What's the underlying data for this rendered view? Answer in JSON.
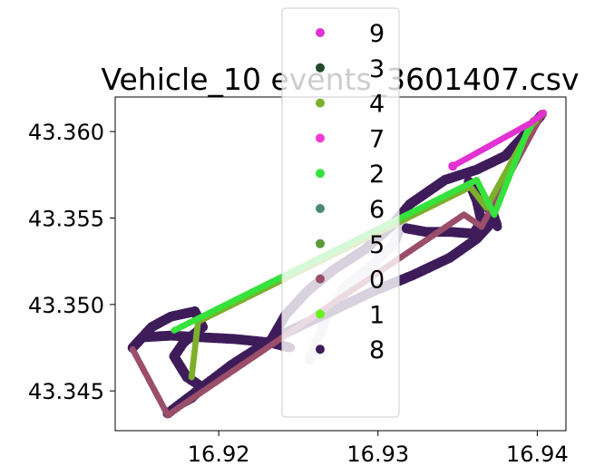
{
  "chart_data": {
    "type": "scatter",
    "title": "Vehicle_10 events_3601407.csv",
    "xlabel": "",
    "ylabel": "",
    "xlim": [
      16.9135,
      16.9418
    ],
    "ylim": [
      43.3427,
      43.362
    ],
    "x_ticks": [
      {
        "value": 16.92,
        "label": "16.92"
      },
      {
        "value": 16.93,
        "label": "16.93"
      },
      {
        "value": 16.94,
        "label": "16.94"
      }
    ],
    "y_ticks": [
      {
        "value": 43.345,
        "label": "43.345"
      },
      {
        "value": 43.35,
        "label": "43.350"
      },
      {
        "value": 43.355,
        "label": "43.355"
      },
      {
        "value": 43.36,
        "label": "43.360"
      }
    ],
    "grid": false,
    "legend_position": "top-center",
    "legend": [
      {
        "label": "9",
        "color": "#e232d2"
      },
      {
        "label": "3",
        "color": "#234a2c"
      },
      {
        "label": "4",
        "color": "#7cb02c"
      },
      {
        "label": "7",
        "color": "#f23ad6"
      },
      {
        "label": "2",
        "color": "#36e23c"
      },
      {
        "label": "6",
        "color": "#4a8a6e"
      },
      {
        "label": "5",
        "color": "#5e9a3a"
      },
      {
        "label": "0",
        "color": "#9a4e6a"
      },
      {
        "label": "1",
        "color": "#6af21e"
      },
      {
        "label": "8",
        "color": "#3e1c5a"
      }
    ],
    "series": [
      {
        "label": "6",
        "color": "#d8cfe0",
        "points": [
          [
            16.9257,
            43.3468
          ],
          [
            16.9268,
            43.3493
          ],
          [
            16.928,
            43.3511
          ],
          [
            16.9298,
            43.3524
          ],
          [
            16.931,
            43.3535
          ],
          [
            16.9315,
            43.3547
          ],
          [
            16.9318,
            43.3556
          ]
        ]
      },
      {
        "label": "8",
        "color": "#3e1c5a",
        "points": [
          [
            16.9168,
            43.3437
          ],
          [
            16.9188,
            43.3451
          ],
          [
            16.9208,
            43.3465
          ],
          [
            16.923,
            43.3478
          ],
          [
            16.9252,
            43.3488
          ],
          [
            16.9275,
            43.3498
          ],
          [
            16.9298,
            43.3508
          ],
          [
            16.9322,
            43.3517
          ],
          [
            16.9345,
            43.3527
          ],
          [
            16.9362,
            43.3538
          ],
          [
            16.9372,
            43.3548
          ]
        ]
      },
      {
        "label": "8",
        "color": "#3e1c5a",
        "points": [
          [
            16.9232,
            43.3478
          ],
          [
            16.9242,
            43.3494
          ],
          [
            16.9256,
            43.3508
          ],
          [
            16.9272,
            43.352
          ],
          [
            16.9292,
            43.3532
          ],
          [
            16.9308,
            43.3545
          ],
          [
            16.932,
            43.3558
          ],
          [
            16.9342,
            43.3572
          ],
          [
            16.9362,
            43.3578
          ],
          [
            16.938,
            43.3586
          ],
          [
            16.9392,
            43.3598
          ],
          [
            16.9403,
            43.361
          ]
        ]
      },
      {
        "label": "8",
        "color": "#3e1c5a",
        "points": [
          [
            16.9146,
            43.3475
          ],
          [
            16.9152,
            43.3481
          ],
          [
            16.917,
            43.3482
          ],
          [
            16.919,
            43.3481
          ],
          [
            16.921,
            43.348
          ],
          [
            16.9232,
            43.3478
          ],
          [
            16.9245,
            43.3475
          ]
        ]
      },
      {
        "label": "8",
        "color": "#3e1c5a",
        "points": [
          [
            16.9146,
            43.3475
          ],
          [
            16.9158,
            43.3487
          ],
          [
            16.917,
            43.3493
          ],
          [
            16.9185,
            43.3496
          ],
          [
            16.919,
            43.3487
          ],
          [
            16.9178,
            43.3478
          ],
          [
            16.9172,
            43.347
          ],
          [
            16.918,
            43.3458
          ],
          [
            16.919,
            43.3452
          ],
          [
            16.9183,
            43.3446
          ],
          [
            16.9175,
            43.3442
          ]
        ]
      },
      {
        "label": "8",
        "color": "#3e1c5a",
        "points": [
          [
            16.9318,
            43.3544
          ],
          [
            16.933,
            43.3542
          ],
          [
            16.9345,
            43.3542
          ],
          [
            16.936,
            43.3541
          ],
          [
            16.9365,
            43.3548
          ],
          [
            16.9362,
            43.356
          ],
          [
            16.9357,
            43.3571
          ],
          [
            16.9362,
            43.3563
          ],
          [
            16.9372,
            43.3553
          ],
          [
            16.9375,
            43.3545
          ]
        ]
      },
      {
        "label": "0",
        "color": "#9a4e6a",
        "points": [
          [
            16.9146,
            43.3474
          ],
          [
            16.9168,
            43.3436
          ],
          [
            16.9354,
            43.3552
          ],
          [
            16.9365,
            43.3545
          ],
          [
            16.9403,
            43.361
          ]
        ]
      },
      {
        "label": "4",
        "color": "#7cb02c",
        "points": [
          [
            16.9183,
            43.3458
          ],
          [
            16.9187,
            43.349
          ],
          [
            16.9358,
            43.3568
          ],
          [
            16.9368,
            43.3556
          ],
          [
            16.9398,
            43.3606
          ]
        ]
      },
      {
        "label": "2",
        "color": "#36e23c",
        "points": [
          [
            16.9172,
            43.3485
          ],
          [
            16.9362,
            43.3572
          ],
          [
            16.9373,
            43.3552
          ],
          [
            16.9395,
            43.3603
          ]
        ]
      },
      {
        "label": "9",
        "color": "#e232d2",
        "points": [
          [
            16.9404,
            43.3611
          ],
          [
            16.9396,
            43.3605
          ],
          [
            16.9347,
            43.358
          ]
        ]
      }
    ]
  }
}
